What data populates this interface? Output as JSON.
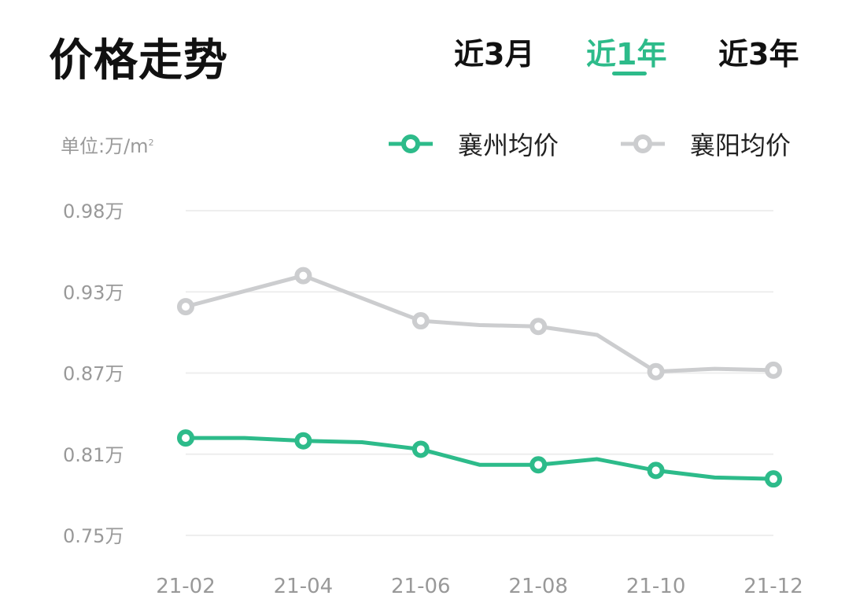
{
  "header": {
    "title": "价格走势",
    "tabs": [
      {
        "label": "近3月",
        "active": false
      },
      {
        "label": "近1年",
        "active": true
      },
      {
        "label": "近3年",
        "active": false
      }
    ]
  },
  "colors": {
    "accent": "#2dbb8a",
    "secondary": "#cccdcf",
    "grid": "#eeeeee"
  },
  "chart_data": {
    "type": "line",
    "unit_label": "单位:万/m",
    "unit_sup": "2",
    "x": [
      "21-02",
      "21-03",
      "21-04",
      "21-05",
      "21-06",
      "21-07",
      "21-08",
      "21-09",
      "21-10",
      "21-11",
      "21-12"
    ],
    "x_tick_labels": [
      "21-02",
      "21-04",
      "21-06",
      "21-08",
      "21-10",
      "21-12"
    ],
    "y_tick_labels": [
      "0.98万",
      "0.93万",
      "0.87万",
      "0.81万",
      "0.75万"
    ],
    "ylim": [
      0.75,
      0.98
    ],
    "grid": true,
    "legend_position": "top-right",
    "series": [
      {
        "name": "襄州均价",
        "color": "#2dbb8a",
        "values": [
          0.819,
          0.819,
          0.817,
          0.816,
          0.811,
          0.8,
          0.8,
          0.804,
          0.796,
          0.791,
          0.79
        ]
      },
      {
        "name": "襄阳均价",
        "color": "#cccdcf",
        "values": [
          0.912,
          0.923,
          0.934,
          0.918,
          0.902,
          0.899,
          0.898,
          0.892,
          0.866,
          0.868,
          0.867
        ]
      }
    ]
  }
}
